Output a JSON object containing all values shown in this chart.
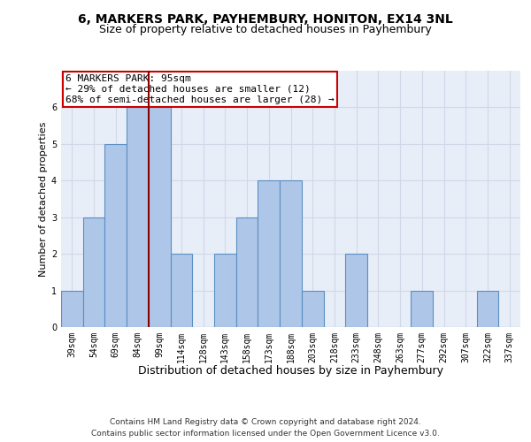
{
  "title1": "6, MARKERS PARK, PAYHEMBURY, HONITON, EX14 3NL",
  "title2": "Size of property relative to detached houses in Payhembury",
  "xlabel": "Distribution of detached houses by size in Payhembury",
  "ylabel": "Number of detached properties",
  "categories": [
    "39sqm",
    "54sqm",
    "69sqm",
    "84sqm",
    "99sqm",
    "114sqm",
    "128sqm",
    "143sqm",
    "158sqm",
    "173sqm",
    "188sqm",
    "203sqm",
    "218sqm",
    "233sqm",
    "248sqm",
    "263sqm",
    "277sqm",
    "292sqm",
    "307sqm",
    "322sqm",
    "337sqm"
  ],
  "bar_values": [
    1,
    3,
    5,
    6,
    6,
    2,
    0,
    2,
    3,
    4,
    4,
    1,
    0,
    2,
    0,
    0,
    1,
    0,
    0,
    1,
    0
  ],
  "bar_color": "#aec6e8",
  "bar_edge_color": "#5a8fc2",
  "highlight_line_color": "#8b0000",
  "annotation_text": "6 MARKERS PARK: 95sqm\n← 29% of detached houses are smaller (12)\n68% of semi-detached houses are larger (28) →",
  "annotation_box_color": "#ffffff",
  "annotation_box_edge_color": "#cc0000",
  "ylim": [
    0,
    7
  ],
  "yticks": [
    0,
    1,
    2,
    3,
    4,
    5,
    6,
    7
  ],
  "grid_color": "#d0d8e8",
  "background_color": "#e8eef8",
  "footer": "Contains HM Land Registry data © Crown copyright and database right 2024.\nContains public sector information licensed under the Open Government Licence v3.0.",
  "title1_fontsize": 10,
  "title2_fontsize": 9,
  "xlabel_fontsize": 9,
  "ylabel_fontsize": 8,
  "tick_fontsize": 7,
  "annot_fontsize": 8,
  "footer_fontsize": 6.5
}
